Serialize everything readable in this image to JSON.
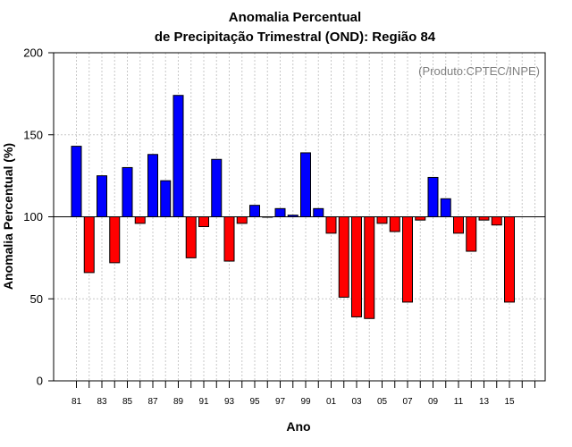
{
  "chart_data": {
    "type": "bar",
    "title": "Anomalia Percentual",
    "subtitle": "de Precipitação Trimestral (OND): Região 84",
    "xlabel": "Ano",
    "ylabel": "Anomalia Percentual (%)",
    "credit": "(Produto:CPTEC/INPE)",
    "baseline": 100,
    "ylim": [
      0,
      200
    ],
    "yticks": [
      "0",
      "50",
      "100",
      "150",
      "200"
    ],
    "xtick_labels": [
      "81",
      "83",
      "85",
      "87",
      "89",
      "91",
      "93",
      "95",
      "97",
      "99",
      "01",
      "03",
      "05",
      "07",
      "09",
      "11",
      "13",
      "15"
    ],
    "grid": true,
    "categories": [
      "1981",
      "1982",
      "1983",
      "1984",
      "1985",
      "1986",
      "1987",
      "1988",
      "1989",
      "1990",
      "1991",
      "1992",
      "1993",
      "1994",
      "1995",
      "1996",
      "1997",
      "1998",
      "1999",
      "2000",
      "2001",
      "2002",
      "2003",
      "2004",
      "2005",
      "2006",
      "2007",
      "2008",
      "2009",
      "2010",
      "2011",
      "2012",
      "2013",
      "2014",
      "2015"
    ],
    "values": [
      143,
      66,
      125,
      72,
      130,
      96,
      138,
      122,
      174,
      75,
      94,
      135,
      73,
      96,
      107,
      100,
      105,
      101,
      139,
      105,
      90,
      51,
      39,
      38,
      96,
      91,
      48,
      98,
      124,
      111,
      90,
      79,
      98,
      95,
      48
    ],
    "colors": {
      "above": "#0000ff",
      "below": "#ff0000"
    }
  }
}
